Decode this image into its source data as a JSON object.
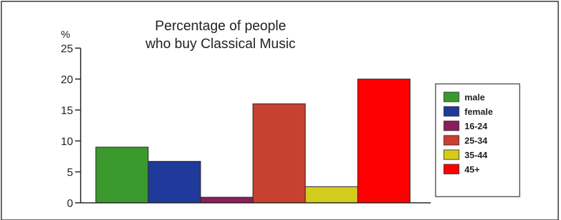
{
  "chart_data": {
    "type": "bar",
    "title_lines": [
      "Percentage of people",
      "who buy Classical Music"
    ],
    "ylabel": "%",
    "xlabel": "",
    "ylim": [
      0,
      25
    ],
    "yticks": [
      0,
      5,
      10,
      15,
      20,
      25
    ],
    "categories": [
      "male",
      "female",
      "16-24",
      "25-34",
      "35-44",
      "45+"
    ],
    "values": [
      9,
      6.7,
      0.9,
      16,
      2.6,
      20
    ],
    "colors": [
      "#3a9a2e",
      "#1f3a9a",
      "#8a1f5c",
      "#c84030",
      "#d4cc1c",
      "#ff0000"
    ],
    "legend_position": "right",
    "grid": false
  }
}
